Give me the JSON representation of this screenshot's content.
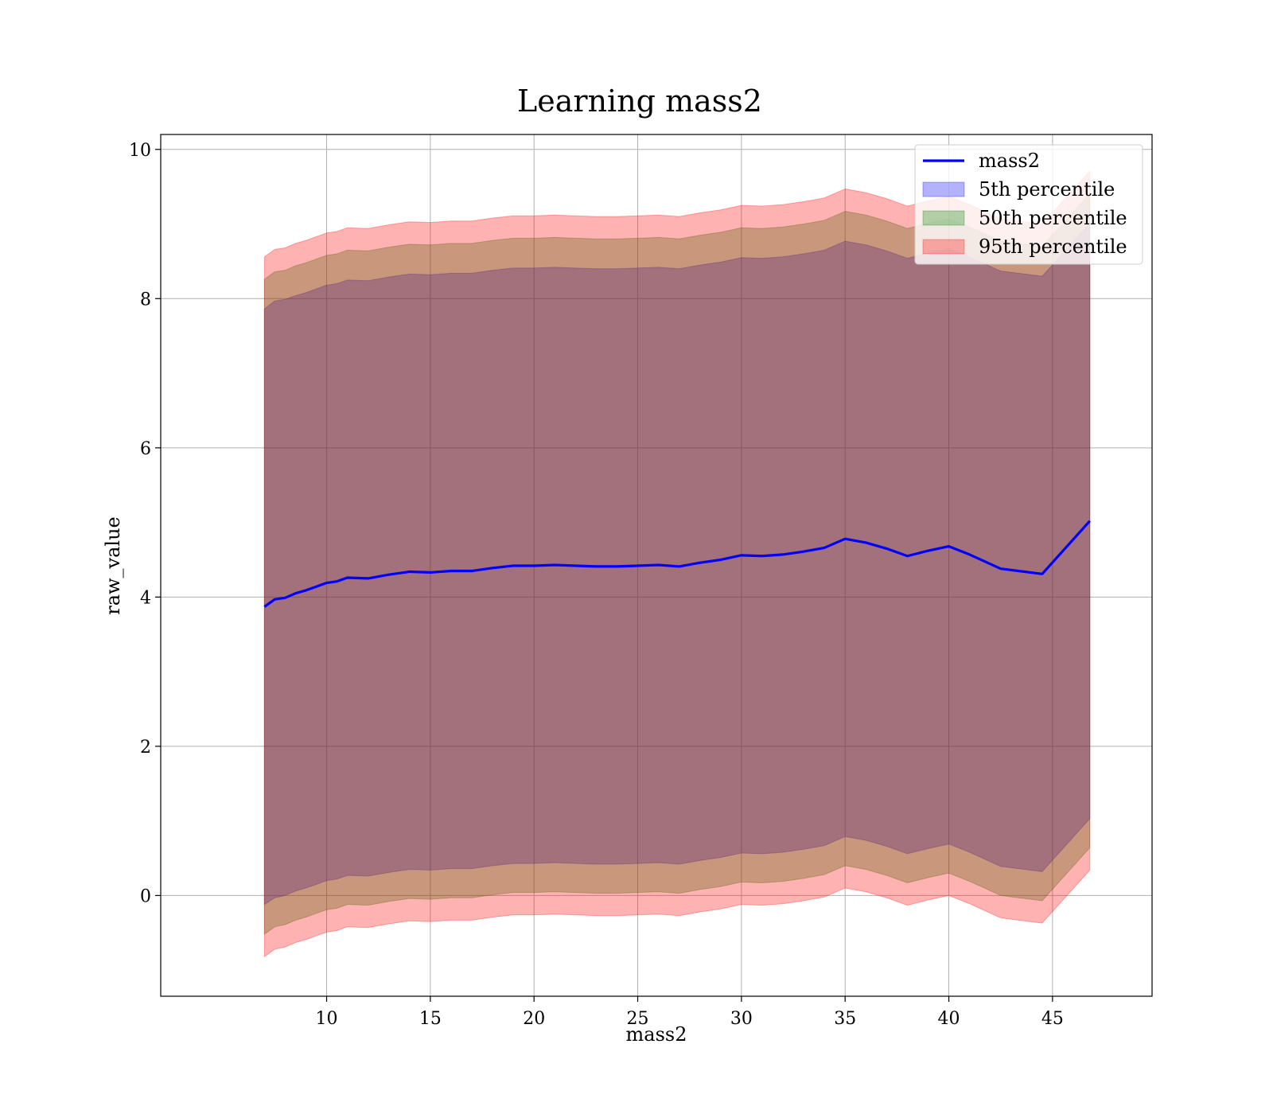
{
  "chart_data": {
    "type": "area",
    "title": "Learning mass2",
    "xlabel": "mass2",
    "ylabel": "raw_value",
    "xlim": [
      2.0,
      49.8
    ],
    "ylim": [
      -1.35,
      10.2
    ],
    "xticks": [
      10,
      15,
      20,
      25,
      30,
      35,
      40,
      45
    ],
    "yticks": [
      0,
      2,
      4,
      6,
      8,
      10
    ],
    "grid": true,
    "legend_position": "top-right",
    "x": [
      7.0,
      7.5,
      8.0,
      8.5,
      9.0,
      9.5,
      10.0,
      10.5,
      11.0,
      12.0,
      13.0,
      14.0,
      15.0,
      16.0,
      17.0,
      18.0,
      19.0,
      20.0,
      21.0,
      22.0,
      23.0,
      24.0,
      25.0,
      26.0,
      27.0,
      28.0,
      29.0,
      30.0,
      31.0,
      32.0,
      33.0,
      34.0,
      35.0,
      36.0,
      37.0,
      38.0,
      39.0,
      40.0,
      41.0,
      42.5,
      44.5,
      46.8
    ],
    "mean": [
      3.87,
      3.97,
      3.99,
      4.05,
      4.09,
      4.14,
      4.19,
      4.21,
      4.26,
      4.25,
      4.3,
      4.34,
      4.33,
      4.35,
      4.35,
      4.39,
      4.42,
      4.42,
      4.43,
      4.42,
      4.41,
      4.41,
      4.42,
      4.43,
      4.41,
      4.46,
      4.5,
      4.56,
      4.55,
      4.57,
      4.61,
      4.66,
      4.78,
      4.73,
      4.65,
      4.55,
      4.62,
      4.68,
      4.57,
      4.38,
      4.31,
      5.02
    ],
    "series": [
      {
        "name": "5th percentile",
        "color": "#0000ff",
        "lower": [
          -0.12,
          -0.03,
          0.0,
          0.06,
          0.1,
          0.15,
          0.2,
          0.22,
          0.27,
          0.26,
          0.31,
          0.35,
          0.34,
          0.36,
          0.36,
          0.4,
          0.43,
          0.43,
          0.44,
          0.43,
          0.42,
          0.42,
          0.43,
          0.44,
          0.42,
          0.47,
          0.51,
          0.57,
          0.56,
          0.58,
          0.62,
          0.67,
          0.79,
          0.74,
          0.66,
          0.56,
          0.63,
          0.69,
          0.58,
          0.39,
          0.32,
          1.03
        ],
        "upper": [
          7.86,
          7.97,
          7.99,
          8.04,
          8.08,
          8.13,
          8.18,
          8.2,
          8.25,
          8.24,
          8.29,
          8.33,
          8.32,
          8.34,
          8.34,
          8.38,
          8.41,
          8.41,
          8.42,
          8.41,
          8.4,
          8.4,
          8.41,
          8.42,
          8.4,
          8.45,
          8.49,
          8.55,
          8.54,
          8.56,
          8.6,
          8.65,
          8.77,
          8.72,
          8.64,
          8.54,
          8.61,
          8.67,
          8.56,
          8.37,
          8.3,
          9.01
        ]
      },
      {
        "name": "50th percentile",
        "color": "#008000",
        "lower": [
          -0.52,
          -0.42,
          -0.39,
          -0.33,
          -0.29,
          -0.24,
          -0.19,
          -0.17,
          -0.12,
          -0.13,
          -0.08,
          -0.04,
          -0.05,
          -0.03,
          -0.03,
          0.01,
          0.04,
          0.04,
          0.05,
          0.04,
          0.03,
          0.03,
          0.04,
          0.05,
          0.03,
          0.08,
          0.12,
          0.18,
          0.17,
          0.19,
          0.23,
          0.28,
          0.4,
          0.35,
          0.27,
          0.17,
          0.24,
          0.3,
          0.19,
          0.0,
          -0.07,
          0.64
        ],
        "upper": [
          8.26,
          8.36,
          8.38,
          8.44,
          8.48,
          8.53,
          8.58,
          8.6,
          8.65,
          8.64,
          8.69,
          8.73,
          8.72,
          8.74,
          8.74,
          8.78,
          8.81,
          8.81,
          8.82,
          8.81,
          8.8,
          8.8,
          8.81,
          8.82,
          8.8,
          8.85,
          8.89,
          8.95,
          8.94,
          8.96,
          9.0,
          9.05,
          9.17,
          9.12,
          9.04,
          8.94,
          9.01,
          9.07,
          8.96,
          8.77,
          8.7,
          9.41
        ]
      },
      {
        "name": "95th percentile",
        "color": "#ff0000",
        "lower": [
          -0.82,
          -0.72,
          -0.69,
          -0.63,
          -0.59,
          -0.54,
          -0.49,
          -0.47,
          -0.42,
          -0.43,
          -0.38,
          -0.34,
          -0.35,
          -0.33,
          -0.33,
          -0.29,
          -0.26,
          -0.26,
          -0.25,
          -0.26,
          -0.27,
          -0.27,
          -0.26,
          -0.25,
          -0.27,
          -0.22,
          -0.18,
          -0.12,
          -0.13,
          -0.11,
          -0.07,
          -0.02,
          0.1,
          0.05,
          -0.03,
          -0.13,
          -0.06,
          0.0,
          -0.11,
          -0.3,
          -0.37,
          0.34
        ],
        "upper": [
          8.56,
          8.66,
          8.68,
          8.74,
          8.78,
          8.83,
          8.88,
          8.9,
          8.95,
          8.94,
          8.99,
          9.03,
          9.02,
          9.04,
          9.04,
          9.08,
          9.11,
          9.11,
          9.12,
          9.11,
          9.1,
          9.1,
          9.11,
          9.12,
          9.1,
          9.15,
          9.19,
          9.25,
          9.24,
          9.26,
          9.3,
          9.35,
          9.47,
          9.42,
          9.34,
          9.24,
          9.31,
          9.37,
          9.26,
          9.07,
          9.0,
          9.71
        ]
      }
    ],
    "line": {
      "name": "mass2",
      "color": "#0000ff"
    }
  }
}
